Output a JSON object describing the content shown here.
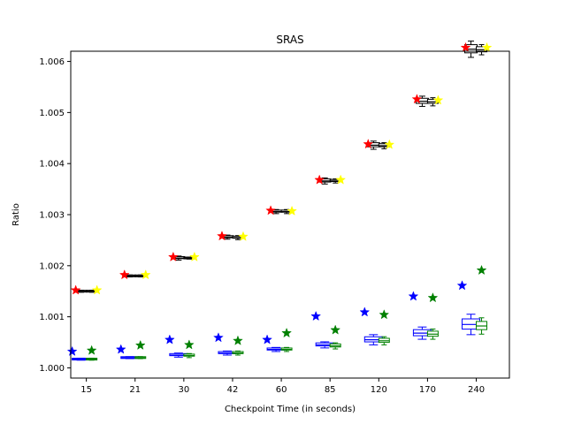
{
  "chart_data": {
    "type": "box",
    "title": "SRAS",
    "xlabel": "Checkpoint Time (in seconds)",
    "ylabel": "Ratio",
    "categories": [
      "15",
      "21",
      "30",
      "42",
      "60",
      "85",
      "120",
      "170",
      "240"
    ],
    "ylim": [
      0.9998,
      1.0062
    ],
    "yticks": [
      1.0,
      1.001,
      1.002,
      1.003,
      1.004,
      1.005,
      1.006
    ],
    "ytick_labels": [
      "1.000",
      "1.001",
      "1.002",
      "1.003",
      "1.004",
      "1.005",
      "1.006"
    ],
    "grid": false,
    "colors": {
      "blue": "#0000ff",
      "green": "#008000",
      "red": "#ff0000",
      "yellow": "#ffff00",
      "black": "#000000"
    },
    "series": [
      {
        "color": "blue",
        "box_color": "blue",
        "marker": "star",
        "box_medians": [
          1.00017,
          1.0002,
          1.00025,
          1.00029,
          1.00036,
          1.00045,
          1.00055,
          1.00068,
          1.00085
        ],
        "box_spread": [
          1e-05,
          1e-05,
          2e-05,
          2e-05,
          2e-05,
          3e-05,
          5e-05,
          6e-05,
          0.0001
        ],
        "outliers": [
          1.00032,
          1.00036,
          1.00055,
          1.00059,
          1.00055,
          1.00101,
          1.00109,
          1.0014,
          1.00161
        ]
      },
      {
        "color": "green",
        "box_color": "green",
        "marker": "star",
        "box_medians": [
          1.00017,
          1.0002,
          1.00024,
          1.00029,
          1.00036,
          1.00043,
          1.00053,
          1.00066,
          1.00082
        ],
        "box_spread": [
          1e-05,
          1e-05,
          2e-05,
          2e-05,
          2e-05,
          3e-05,
          4e-05,
          5e-05,
          8e-05
        ],
        "outliers": [
          1.00034,
          1.00044,
          1.00045,
          1.00053,
          1.00068,
          1.00074,
          1.00104,
          1.00137,
          1.00191
        ]
      },
      {
        "color": "red",
        "box_color": "black",
        "marker": "star",
        "box_medians": [
          1.0015,
          1.0018,
          1.00215,
          1.00256,
          1.00306,
          1.00366,
          1.00436,
          1.00522,
          1.00624
        ],
        "box_spread": [
          1e-05,
          1e-05,
          2e-05,
          2e-05,
          2e-05,
          3e-05,
          4e-05,
          5e-05,
          8e-05
        ],
        "outliers": [
          1.00152,
          1.00182,
          1.00217,
          1.00258,
          1.00308,
          1.00368,
          1.00438,
          1.00526,
          1.00627
        ]
      },
      {
        "color": "yellow",
        "box_color": "black",
        "marker": "star",
        "box_medians": [
          1.0015,
          1.0018,
          1.00215,
          1.00255,
          1.00306,
          1.00366,
          1.00435,
          1.00521,
          1.00623
        ],
        "box_spread": [
          1e-05,
          1e-05,
          1e-05,
          2e-05,
          2e-05,
          2e-05,
          3e-05,
          4e-05,
          5e-05
        ],
        "outliers": [
          1.00152,
          1.00182,
          1.00217,
          1.00257,
          1.00307,
          1.00368,
          1.00437,
          1.00524,
          1.00627
        ]
      }
    ]
  }
}
